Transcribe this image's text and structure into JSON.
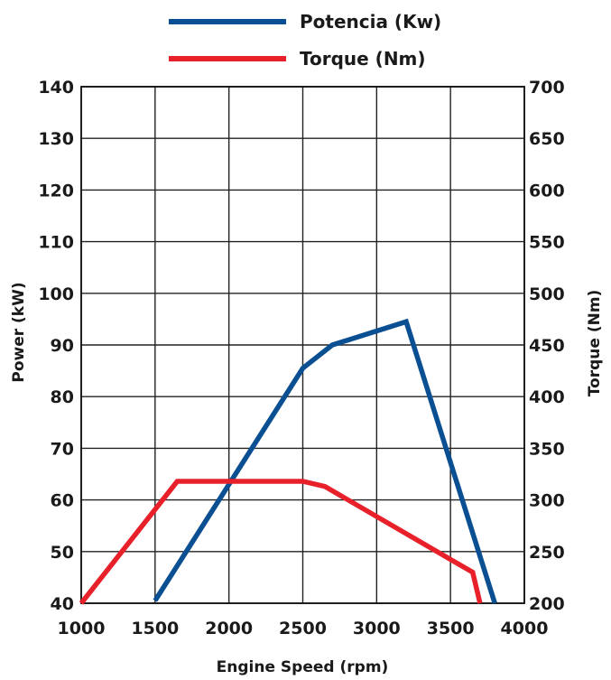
{
  "chart_data": {
    "type": "line",
    "xlabel": "Engine Speed (rpm)",
    "ylabel": "Power (kW)",
    "y2label": "Torque (Nm)",
    "x_ticks": [
      "1000",
      "1500",
      "2000",
      "2500",
      "3000",
      "3500",
      "4000"
    ],
    "y_ticks": [
      "40",
      "50",
      "60",
      "70",
      "80",
      "90",
      "100",
      "110",
      "120",
      "130",
      "140"
    ],
    "y2_ticks": [
      "200",
      "250",
      "300",
      "350",
      "400",
      "450",
      "500",
      "550",
      "600",
      "650",
      "700"
    ],
    "xlim": [
      1000,
      4000
    ],
    "ylim": [
      40,
      140
    ],
    "y2lim": [
      200,
      700
    ],
    "grid": true,
    "legend_position": "top-center",
    "series": [
      {
        "name": "Potencia (Kw)",
        "axis": "left",
        "color": "#0a4f91",
        "points": [
          [
            1500,
            40.5
          ],
          [
            2500,
            85.5
          ],
          [
            2700,
            90
          ],
          [
            3200,
            94.5
          ],
          [
            3800,
            40
          ]
        ]
      },
      {
        "name": "Torque (Nm)",
        "axis": "right",
        "color": "#e8202a",
        "points": [
          [
            1000,
            200
          ],
          [
            1650,
            318
          ],
          [
            2500,
            318
          ],
          [
            2650,
            313
          ],
          [
            3650,
            230
          ],
          [
            3700,
            200
          ]
        ]
      }
    ]
  }
}
